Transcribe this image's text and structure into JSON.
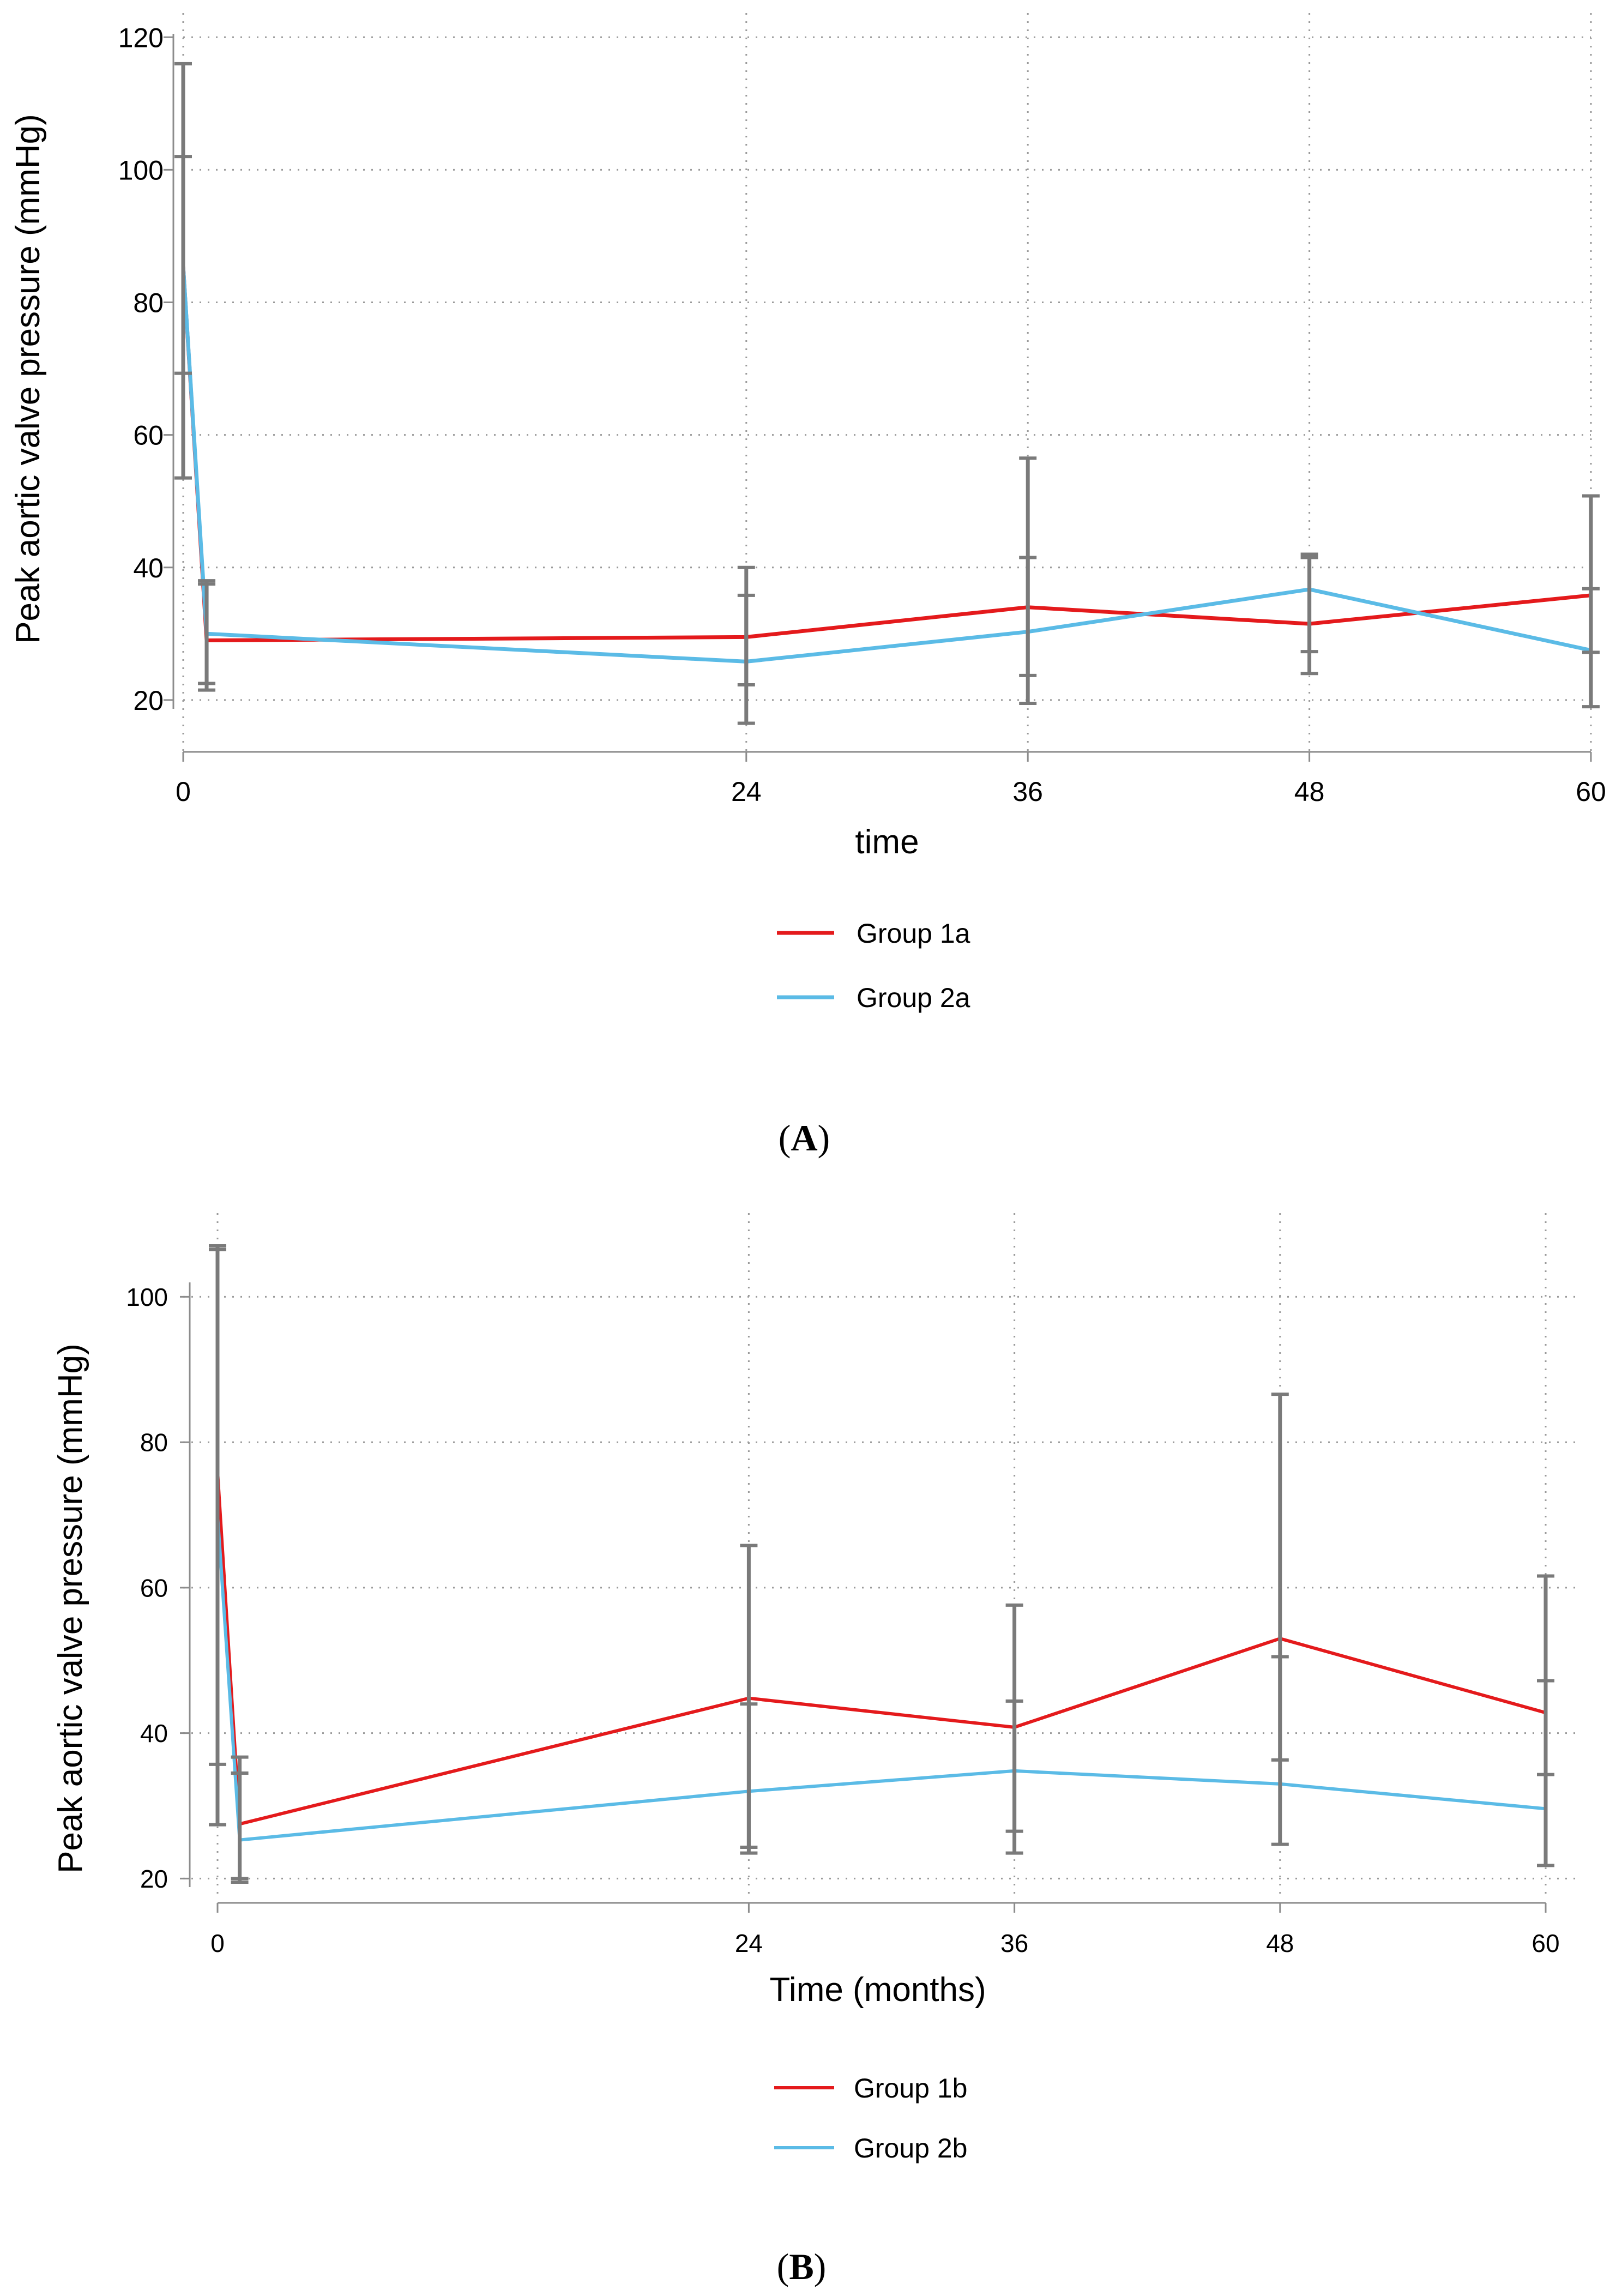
{
  "chart_data": [
    {
      "panel_label": "A",
      "type": "line",
      "title": "",
      "xlabel": "time",
      "ylabel": "Peak aortic valve pressure (mmHg)",
      "xlim": [
        0,
        60
      ],
      "ylim": [
        13,
        122
      ],
      "xticks": [
        0,
        24,
        36,
        48,
        60
      ],
      "yticks": [
        20,
        40,
        60,
        80,
        100,
        120
      ],
      "grid": true,
      "legend_position": "bottom",
      "series": [
        {
          "name": "Group 1a",
          "color": "#e41a1c",
          "x": [
            0,
            1,
            24,
            36,
            48,
            60
          ],
          "y": [
            85.5,
            29,
            29.5,
            34,
            31.5,
            35.8
          ],
          "err_low": [
            53.5,
            22.5,
            16.5,
            19.5,
            24,
            19
          ],
          "err_high": [
            116,
            38,
            40,
            56.5,
            42,
            50.8
          ]
        },
        {
          "name": "Group 2a",
          "color": "#5bbbe6",
          "x": [
            0,
            1,
            24,
            36,
            48,
            60
          ],
          "y": [
            85.5,
            30,
            25.8,
            30.3,
            36.7,
            27.5
          ],
          "err_low": [
            69.3,
            21.5,
            22.3,
            23.7,
            27.3,
            27.2
          ],
          "err_high": [
            102,
            37.5,
            35.8,
            41.5,
            41.5,
            36.8
          ]
        }
      ]
    },
    {
      "panel_label": "B",
      "type": "line",
      "title": "",
      "xlabel": "Time (months)",
      "ylabel": "Peak aortic valve pressure (mmHg)",
      "xlim": [
        -1,
        61
      ],
      "ylim": [
        18,
        110
      ],
      "xticks": [
        0,
        24,
        36,
        48,
        60
      ],
      "yticks": [
        20,
        40,
        60,
        80,
        100
      ],
      "grid": true,
      "legend_position": "bottom",
      "series": [
        {
          "name": "Group 1b",
          "color": "#e41a1c",
          "x": [
            0,
            1,
            24,
            36,
            48,
            60
          ],
          "y": [
            76,
            27.5,
            44.8,
            40.8,
            53,
            42.8
          ],
          "err_low": [
            35.7,
            20,
            23.5,
            23.5,
            24.7,
            21.8
          ],
          "err_high": [
            107,
            36.7,
            65.8,
            57.6,
            86.6,
            61.6
          ]
        },
        {
          "name": "Group 2b",
          "color": "#5bbbe6",
          "x": [
            0,
            1,
            24,
            36,
            48,
            60
          ],
          "y": [
            70,
            25.3,
            32,
            34.8,
            33,
            29.6
          ],
          "err_low": [
            27.4,
            19.5,
            24.3,
            26.5,
            36.3,
            34.3
          ],
          "err_high": [
            106.5,
            34.5,
            44,
            44.4,
            50.5,
            47.2
          ]
        }
      ]
    }
  ]
}
